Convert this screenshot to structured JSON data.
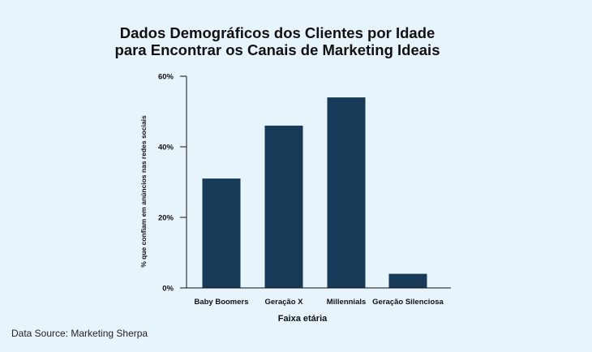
{
  "chart_data": {
    "type": "bar",
    "title_lines": [
      "Dados Demográficos dos Clientes por Idade",
      "para Encontrar os Canais de Marketing Ideais"
    ],
    "xlabel": "Faixa etária",
    "ylabel": "% que confiam em anúncios nas redes sociais",
    "categories": [
      "Baby Boomers",
      "Geração X",
      "Millennials",
      "Geração Silenciosa"
    ],
    "values": [
      31,
      46,
      54,
      4
    ],
    "ylim": [
      0,
      60
    ],
    "yticks": [
      0,
      20,
      40,
      60
    ],
    "ytick_labels": [
      "0%",
      "20%",
      "40%",
      "60%"
    ],
    "grid": false,
    "legend": "none",
    "bar_color": "#163a58"
  },
  "source_note": "Data Source: Marketing Sherpa"
}
